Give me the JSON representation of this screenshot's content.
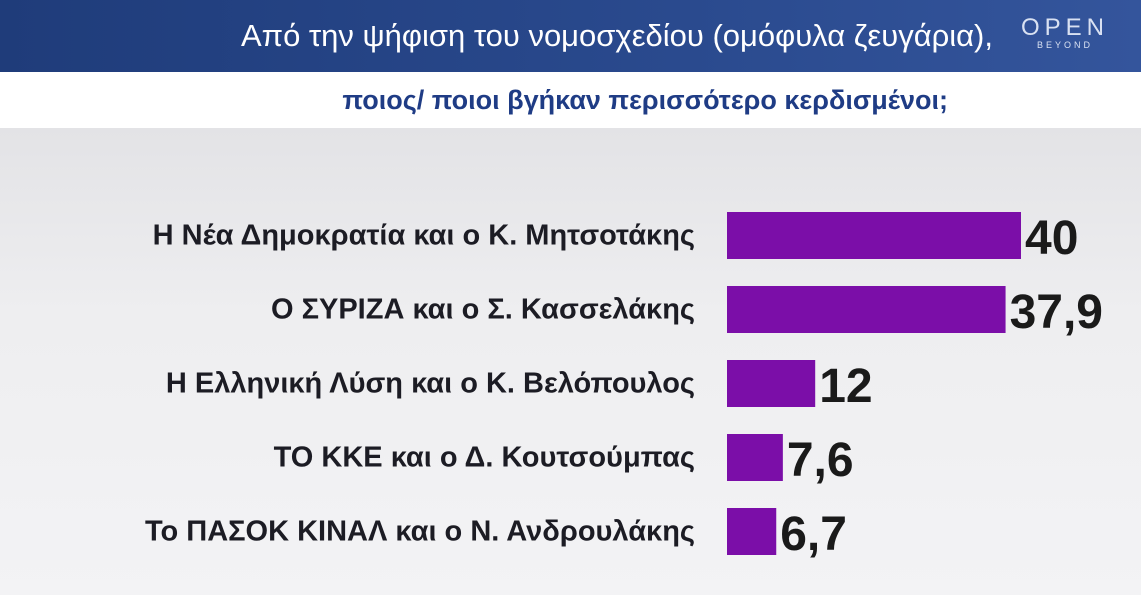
{
  "header": {
    "title": "Από την ψήφιση του νομοσχεδίου (ομόφυλα ζευγάρια),",
    "logo_main": "OPEN",
    "logo_sub": "BEYOND"
  },
  "subheader": {
    "subtitle": "ποιος/ ποιοι βγήκαν περισσότερο κερδισμένοι;"
  },
  "colors": {
    "bar": "#7b0ea8",
    "header_bg": "#24417f",
    "subtitle": "#1f3c85"
  },
  "chart_data": {
    "type": "bar",
    "orientation": "horizontal",
    "categories": [
      "Η Νέα Δημοκρατία και ο Κ. Μητσοτάκης",
      "Ο ΣΥΡΙΖΑ και ο Σ. Κασσελάκης",
      "Η Ελληνική Λύση και ο Κ. Βελόπουλος",
      "ΤΟ ΚΚΕ και ο Δ. Κουτσούμπας",
      "Το ΠΑΣΟΚ ΚΙΝΑΛ και ο Ν. Ανδρουλάκης"
    ],
    "values": [
      40,
      37.9,
      12,
      7.6,
      6.7
    ],
    "value_labels": [
      "40",
      "37,9",
      "12",
      "7,6",
      "6,7"
    ],
    "xlim": [
      0,
      40
    ],
    "grid": false,
    "legend": "none"
  }
}
